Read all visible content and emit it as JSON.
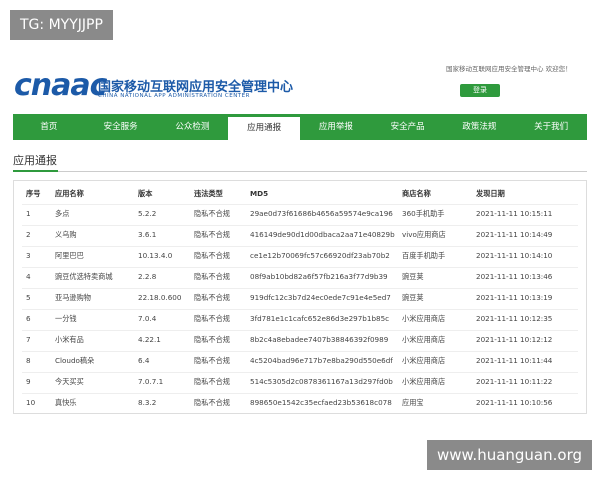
{
  "watermark_top": "TG: MYYJJPP",
  "header": {
    "logo": "cnaac",
    "org_name": "国家移动互联网应用安全管理中心",
    "org_name_en": "CHINA NATIONAL APP ADMINISTRATION CENTER",
    "welcome": "国家移动互联网应用安全管理中心 欢迎您！",
    "login": "登录"
  },
  "nav": {
    "items": [
      "首页",
      "安全服务",
      "公众检测",
      "应用通报",
      "应用举报",
      "安全产品",
      "政策法规",
      "关于我们"
    ],
    "active": 3
  },
  "section_title": "应用通报",
  "table": {
    "columns": [
      "序号",
      "应用名称",
      "版本",
      "违法类型",
      "MD5",
      "商店名称",
      "发现日期"
    ],
    "rows": [
      [
        "1",
        "多点",
        "5.2.2",
        "隐私不合规",
        "29ae0d73f61686b4656a59574e9ca196",
        "360手机助手",
        "2021-11-11 10:15:11"
      ],
      [
        "2",
        "义乌购",
        "3.6.1",
        "隐私不合规",
        "416149de90d1d00dbaca2aa71e40829b",
        "vivo应用商店",
        "2021-11-11 10:14:49"
      ],
      [
        "3",
        "阿里巴巴",
        "10.13.4.0",
        "隐私不合规",
        "ce1e12b70069fc57c66920df23ab70b2",
        "百度手机助手",
        "2021-11-11 10:14:10"
      ],
      [
        "4",
        "豌豆优选特卖商城",
        "2.2.8",
        "隐私不合规",
        "08f9ab10bd82a6f57fb216a3f77d9b39",
        "豌豆荚",
        "2021-11-11 10:13:46"
      ],
      [
        "5",
        "亚马逊购物",
        "22.18.0.600",
        "隐私不合规",
        "919dfc12c3b7d24ec0ede7c91e4e5ed7",
        "豌豆荚",
        "2021-11-11 10:13:19"
      ],
      [
        "6",
        "一分钱",
        "7.0.4",
        "隐私不合规",
        "3fd781e1c1cafc652e86d3e297b1b85c",
        "小米应用商店",
        "2021-11-11 10:12:35"
      ],
      [
        "7",
        "小米有品",
        "4.22.1",
        "隐私不合规",
        "8b2c4a8ebadee7407b38846392f0989",
        "小米应用商店",
        "2021-11-11 10:12:12"
      ],
      [
        "8",
        "Cloudo稿朵",
        "6.4",
        "隐私不合规",
        "4c5204bad96e717b7e8ba290d550e6df",
        "小米应用商店",
        "2021-11-11 10:11:44"
      ],
      [
        "9",
        "今天买买",
        "7.0.7.1",
        "隐私不合规",
        "514c5305d2c0878361167a13d297fd0b",
        "小米应用商店",
        "2021-11-11 10:11:22"
      ],
      [
        "10",
        "真快乐",
        "8.3.2",
        "隐私不合规",
        "898650e1542c35ecfaed23b53618c078",
        "应用宝",
        "2021-11-11 10:10:56"
      ]
    ]
  },
  "watermark_bottom": "www.huanguan.org"
}
